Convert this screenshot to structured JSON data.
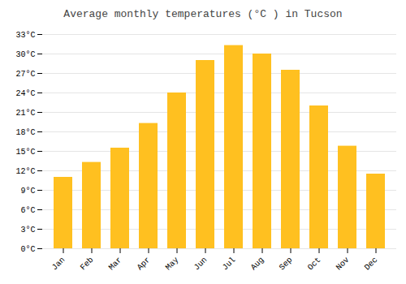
{
  "chart_data": {
    "type": "bar",
    "title": "Average monthly temperatures (°C ) in Tucson",
    "categories": [
      "Jan",
      "Feb",
      "Mar",
      "Apr",
      "May",
      "Jun",
      "Jul",
      "Aug",
      "Sep",
      "Oct",
      "Nov",
      "Dec"
    ],
    "values": [
      11.0,
      13.3,
      15.5,
      19.3,
      24.0,
      29.0,
      31.3,
      30.0,
      27.5,
      22.0,
      15.8,
      11.5
    ],
    "color": "#FFC020",
    "ylim": [
      0,
      33
    ],
    "yticks": [
      {
        "value": 0,
        "label": "0°C"
      },
      {
        "value": 3,
        "label": "3°C"
      },
      {
        "value": 6,
        "label": "6°C"
      },
      {
        "value": 9,
        "label": "9°C"
      },
      {
        "value": 12,
        "label": "12°C"
      },
      {
        "value": 15,
        "label": "15°C"
      },
      {
        "value": 18,
        "label": "18°C"
      },
      {
        "value": 21,
        "label": "21°C"
      },
      {
        "value": 24,
        "label": "24°C"
      },
      {
        "value": 27,
        "label": "27°C"
      },
      {
        "value": 30,
        "label": "30°C"
      },
      {
        "value": 33,
        "label": "33°C"
      }
    ],
    "grid": true
  }
}
